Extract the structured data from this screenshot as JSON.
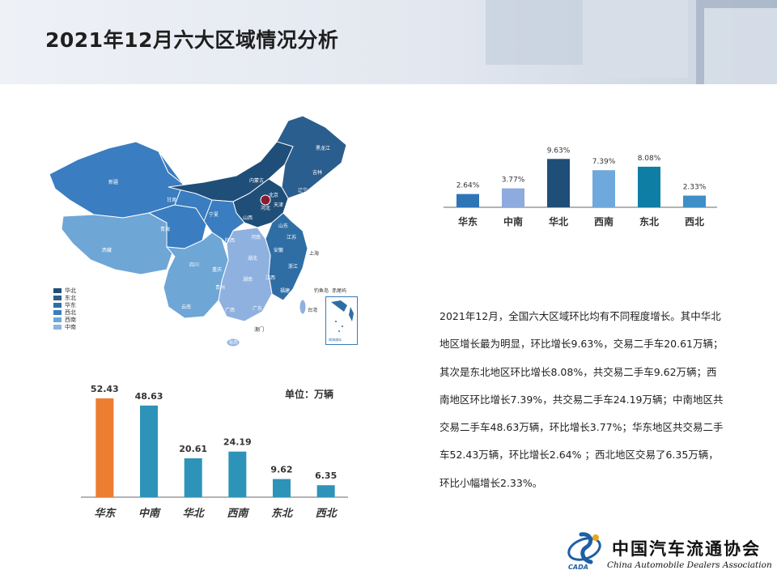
{
  "header": {
    "title": "2021年12月六大区域情况分析"
  },
  "map": {
    "province_labels": [
      "新疆",
      "西藏",
      "青海",
      "甘肃",
      "四川",
      "云南",
      "内蒙古",
      "黑龙江",
      "吉林",
      "辽宁",
      "北京",
      "河北",
      "山西",
      "山东",
      "陕西",
      "河南",
      "湖北",
      "安徽",
      "江苏",
      "上海",
      "浙江",
      "湖南",
      "江西",
      "福建",
      "贵州",
      "广西",
      "广东",
      "海南",
      "宁夏",
      "重庆",
      "天津",
      "台湾",
      "钓鱼岛",
      "赤尾屿",
      "澳门"
    ],
    "legend": [
      {
        "label": "华北",
        "color": "#1f4e79"
      },
      {
        "label": "东北",
        "color": "#2a5e8e"
      },
      {
        "label": "华东",
        "color": "#2f6ea5"
      },
      {
        "label": "西北",
        "color": "#3a7dc0"
      },
      {
        "label": "西南",
        "color": "#6ea6d6"
      },
      {
        "label": "中南",
        "color": "#8fb1e0"
      }
    ],
    "inset_label": "南海诸岛"
  },
  "chart_data": [
    {
      "type": "bar",
      "categories": [
        "华东",
        "中南",
        "华北",
        "西南",
        "东北",
        "西北"
      ],
      "values": [
        2.64,
        3.77,
        9.63,
        7.39,
        8.08,
        2.33
      ],
      "value_labels": [
        "2.64%",
        "3.77%",
        "9.63%",
        "7.39%",
        "8.08%",
        "2.33%"
      ],
      "colors": [
        "#2e75b6",
        "#8faadc",
        "#1f4e79",
        "#6fa8dc",
        "#0f7ea5",
        "#3d8fc6"
      ],
      "ylim": [
        0,
        10
      ]
    },
    {
      "type": "bar",
      "categories": [
        "华东",
        "中南",
        "华北",
        "西南",
        "东北",
        "西北"
      ],
      "values": [
        52.43,
        48.63,
        20.61,
        24.19,
        9.62,
        6.35
      ],
      "value_labels": [
        "52.43",
        "48.63",
        "20.61",
        "24.19",
        "9.62",
        "6.35"
      ],
      "colors": [
        "#ed7d31",
        "#2e93b8",
        "#2e93b8",
        "#2e93b8",
        "#2e93b8",
        "#2e93b8"
      ],
      "ylim": [
        0,
        55
      ],
      "unit_label": "单位：万辆"
    }
  ],
  "description": {
    "lines": [
      "2021年12月，全国六大区域环比均有不同程度增长。其中华北",
      "地区增长最为明显，环比增长9.63%，交易二手车20.61万辆；",
      "其次是东北地区环比增长8.08%，共交易二手车9.62万辆；西",
      "南地区环比增长7.39%，共交易二手车24.19万辆；中南地区共",
      "交易二手车48.63万辆，环比增长3.77%；华东地区共交易二手",
      "车52.43万辆，环比增长2.64% ；西北地区交易了6.35万辆，",
      "环比小幅增长2.33%。"
    ]
  },
  "logo": {
    "name_cn": "中国汽车流通协会",
    "name_en": "China Automobile Dealers Association",
    "abbr": "CADA"
  }
}
